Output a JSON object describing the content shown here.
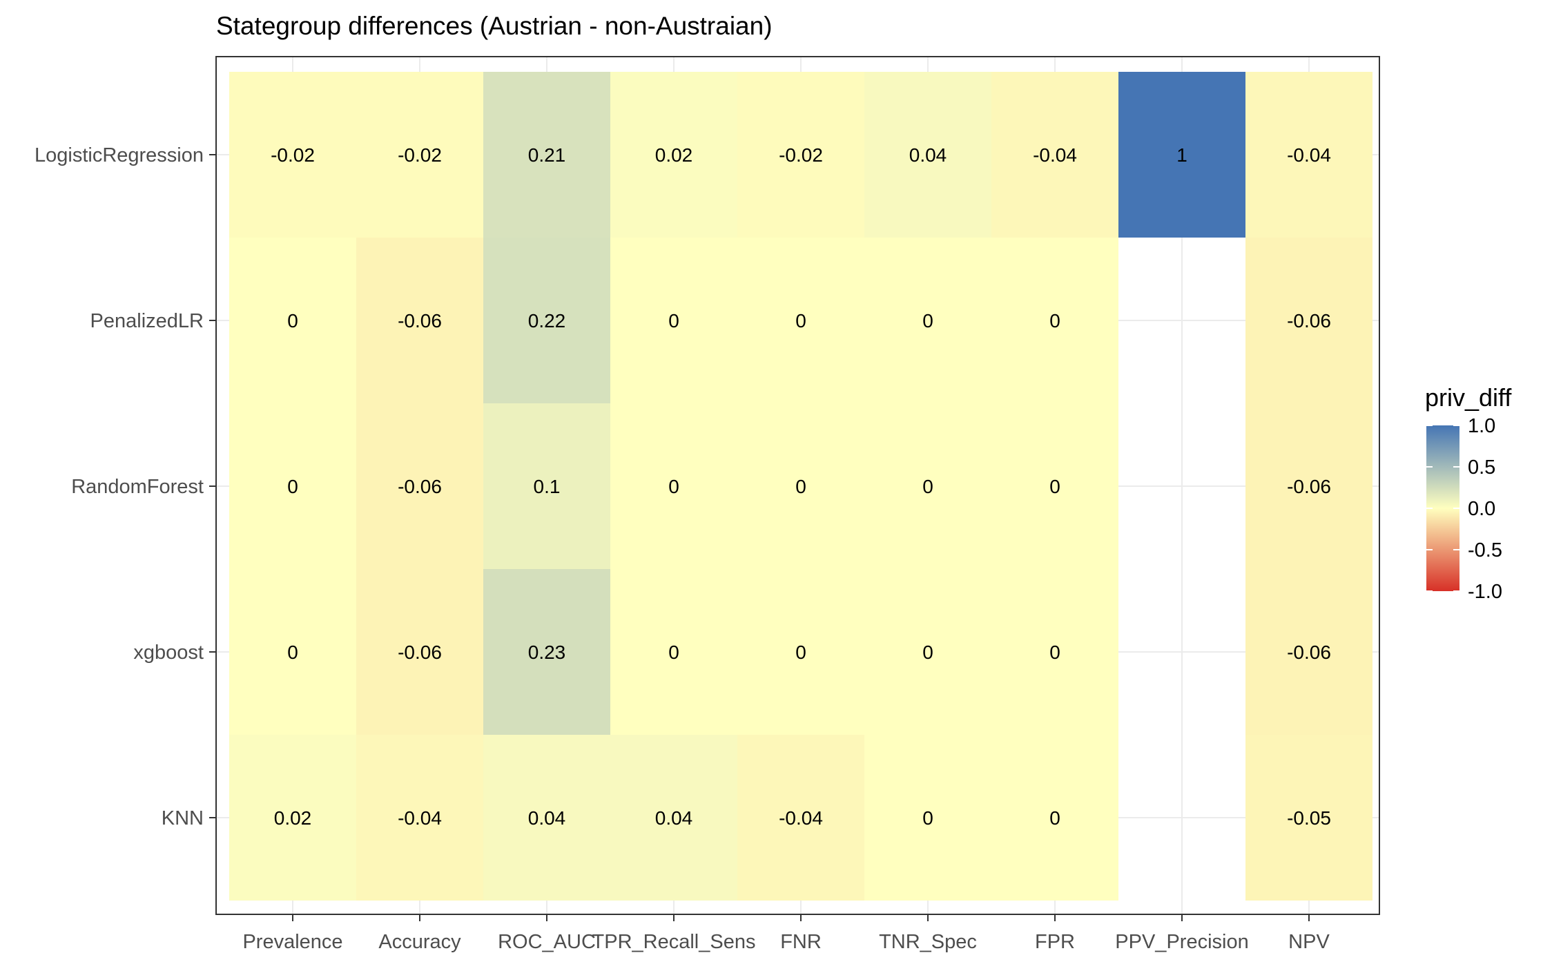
{
  "chart_data": {
    "type": "heatmap",
    "title": "Stategroup differences (Austrian - non-Austraian)",
    "xlabel": "",
    "ylabel": "",
    "x_categories": [
      "Prevalence",
      "Accuracy",
      "ROC_AUC",
      "TPR_Recall_Sens",
      "FNR",
      "TNR_Spec",
      "FPR",
      "PPV_Precision",
      "NPV"
    ],
    "y_categories": [
      "LogisticRegression",
      "PenalizedLR",
      "RandomForest",
      "xgboost",
      "KNN"
    ],
    "values": [
      [
        -0.02,
        -0.02,
        0.21,
        0.02,
        -0.02,
        0.04,
        -0.04,
        1,
        -0.04
      ],
      [
        0,
        -0.06,
        0.22,
        0,
        0,
        0,
        0,
        null,
        -0.06
      ],
      [
        0,
        -0.06,
        0.1,
        0,
        0,
        0,
        0,
        null,
        -0.06
      ],
      [
        0,
        -0.06,
        0.23,
        0,
        0,
        0,
        0,
        null,
        -0.06
      ],
      [
        0.02,
        -0.04,
        0.04,
        0.04,
        -0.04,
        0,
        0,
        null,
        -0.05
      ]
    ],
    "legend": {
      "title": "priv_diff",
      "placement": "right",
      "range": [
        -1,
        1
      ],
      "ticks": [
        "1.0",
        "0.5",
        "0.0",
        "-0.5",
        "-1.0"
      ],
      "tick_values": [
        1,
        0.5,
        0,
        -0.5,
        -1
      ],
      "colors": {
        "low": "#d73027",
        "mid": "#ffffbf",
        "high": "#4575b4"
      }
    },
    "grid": true
  }
}
